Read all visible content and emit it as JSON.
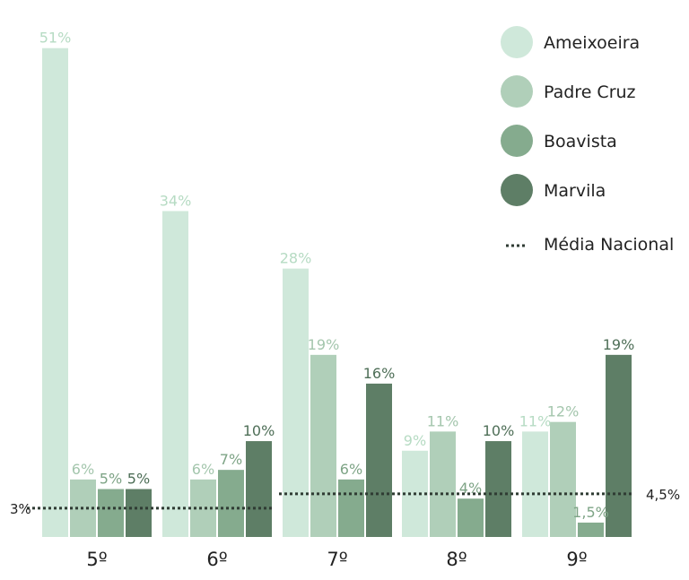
{
  "chart_data": {
    "type": "bar",
    "categories": [
      "5º",
      "6º",
      "7º",
      "8º",
      "9º"
    ],
    "series": [
      {
        "name": "Ameixoeira",
        "color": "#cfe8da",
        "values": [
          51,
          34,
          28,
          9,
          11
        ],
        "labels": [
          "51%",
          "34%",
          "28%",
          "9%",
          "11%"
        ]
      },
      {
        "name": "Padre Cruz",
        "color": "#b0cfb9",
        "values": [
          6,
          6,
          19,
          11,
          12
        ],
        "labels": [
          "6%",
          "6%",
          "19%",
          "11%",
          "12%"
        ]
      },
      {
        "name": "Boavista",
        "color": "#85ab8e",
        "values": [
          5,
          7,
          6,
          4,
          1.5
        ],
        "labels": [
          "5%",
          "7%",
          "6%",
          "4%",
          "1,5%"
        ]
      },
      {
        "name": "Marvila",
        "color": "#5e7e66",
        "values": [
          5,
          10,
          16,
          10,
          19
        ],
        "labels": [
          "5%",
          "10%",
          "16%",
          "10%",
          "19%"
        ]
      }
    ],
    "reference_lines": [
      {
        "series": "Média Nacional",
        "label": "3%",
        "value": 3,
        "categories": [
          "5º",
          "6º"
        ]
      },
      {
        "series": "Média Nacional",
        "label": "4,5%",
        "value": 4.5,
        "categories": [
          "7º",
          "8º",
          "9º"
        ]
      }
    ],
    "legend": {
      "position": "top-right",
      "ref_label": "Média Nacional"
    },
    "ylim": [
      0,
      52
    ],
    "grid": false,
    "title": "",
    "xlabel": "",
    "ylabel": ""
  }
}
